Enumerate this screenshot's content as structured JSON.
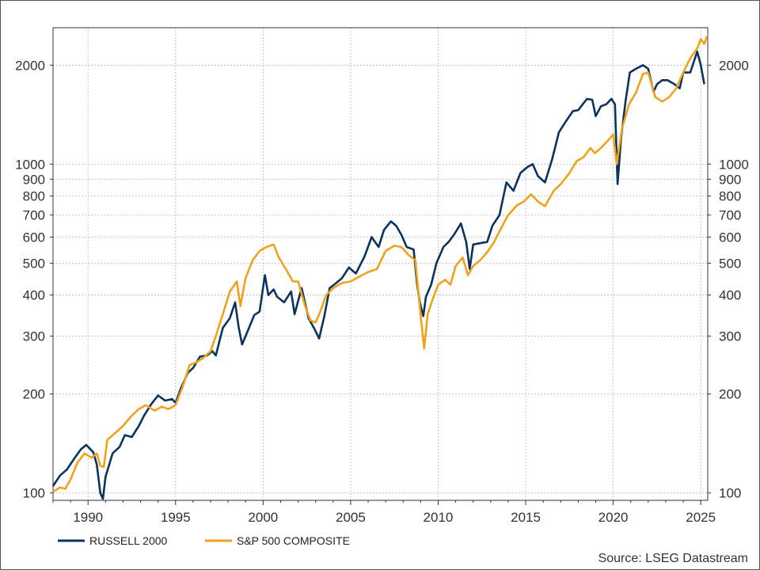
{
  "chart_data": {
    "type": "line",
    "yscale": "log",
    "ylim": [
      95,
      2600
    ],
    "xlim": [
      1988.0,
      2025.4
    ],
    "x_ticks": [
      "1990",
      "1995",
      "2000",
      "2005",
      "2010",
      "2015",
      "2020",
      "2025"
    ],
    "y_ticks": [
      "100",
      "200",
      "300",
      "400",
      "500",
      "600",
      "700",
      "800",
      "900",
      "1000",
      "2000"
    ],
    "grid": true,
    "legend_position": "bottom-left",
    "source": "Source: LSEG Datastream",
    "colors": {
      "russell": "#0b3360",
      "sp500": "#f0a21b"
    },
    "series": [
      {
        "name": "RUSSELL 2000",
        "color": "#0b3360",
        "points": [
          [
            1988.0,
            105
          ],
          [
            1988.4,
            113
          ],
          [
            1988.8,
            118
          ],
          [
            1989.2,
            127
          ],
          [
            1989.6,
            136
          ],
          [
            1989.9,
            140
          ],
          [
            1990.3,
            133
          ],
          [
            1990.5,
            122
          ],
          [
            1990.7,
            100
          ],
          [
            1990.85,
            96
          ],
          [
            1991.0,
            112
          ],
          [
            1991.4,
            132
          ],
          [
            1991.8,
            138
          ],
          [
            1992.1,
            150
          ],
          [
            1992.5,
            148
          ],
          [
            1992.9,
            160
          ],
          [
            1993.2,
            172
          ],
          [
            1993.6,
            186
          ],
          [
            1994.0,
            198
          ],
          [
            1994.4,
            191
          ],
          [
            1994.8,
            193
          ],
          [
            1995.0,
            188
          ],
          [
            1995.3,
            208
          ],
          [
            1995.7,
            232
          ],
          [
            1996.0,
            240
          ],
          [
            1996.4,
            260
          ],
          [
            1996.8,
            262
          ],
          [
            1997.1,
            270
          ],
          [
            1997.3,
            262
          ],
          [
            1997.7,
            318
          ],
          [
            1998.1,
            340
          ],
          [
            1998.4,
            380
          ],
          [
            1998.6,
            320
          ],
          [
            1998.8,
            283
          ],
          [
            1999.0,
            300
          ],
          [
            1999.5,
            348
          ],
          [
            1999.8,
            356
          ],
          [
            2000.1,
            460
          ],
          [
            2000.3,
            400
          ],
          [
            2000.6,
            416
          ],
          [
            2000.8,
            395
          ],
          [
            2001.2,
            380
          ],
          [
            2001.6,
            410
          ],
          [
            2001.8,
            350
          ],
          [
            2002.2,
            420
          ],
          [
            2002.6,
            340
          ],
          [
            2002.9,
            318
          ],
          [
            2003.2,
            295
          ],
          [
            2003.5,
            345
          ],
          [
            2003.8,
            420
          ],
          [
            2004.2,
            436
          ],
          [
            2004.5,
            450
          ],
          [
            2004.9,
            485
          ],
          [
            2005.3,
            465
          ],
          [
            2005.8,
            525
          ],
          [
            2006.2,
            600
          ],
          [
            2006.6,
            560
          ],
          [
            2006.9,
            630
          ],
          [
            2007.3,
            670
          ],
          [
            2007.6,
            650
          ],
          [
            2007.9,
            610
          ],
          [
            2008.2,
            560
          ],
          [
            2008.6,
            550
          ],
          [
            2008.8,
            430
          ],
          [
            2008.95,
            380
          ],
          [
            2009.15,
            345
          ],
          [
            2009.3,
            395
          ],
          [
            2009.6,
            430
          ],
          [
            2009.9,
            500
          ],
          [
            2010.3,
            560
          ],
          [
            2010.6,
            580
          ],
          [
            2010.9,
            610
          ],
          [
            2011.3,
            660
          ],
          [
            2011.6,
            580
          ],
          [
            2011.8,
            480
          ],
          [
            2012.0,
            570
          ],
          [
            2012.4,
            575
          ],
          [
            2012.8,
            580
          ],
          [
            2013.1,
            650
          ],
          [
            2013.5,
            700
          ],
          [
            2013.9,
            880
          ],
          [
            2014.3,
            830
          ],
          [
            2014.7,
            940
          ],
          [
            2015.1,
            980
          ],
          [
            2015.4,
            1000
          ],
          [
            2015.7,
            920
          ],
          [
            2016.1,
            880
          ],
          [
            2016.5,
            1030
          ],
          [
            2016.9,
            1250
          ],
          [
            2017.3,
            1350
          ],
          [
            2017.7,
            1450
          ],
          [
            2018.0,
            1460
          ],
          [
            2018.5,
            1580
          ],
          [
            2018.8,
            1570
          ],
          [
            2019.0,
            1400
          ],
          [
            2019.3,
            1500
          ],
          [
            2019.6,
            1520
          ],
          [
            2019.9,
            1580
          ],
          [
            2020.1,
            1520
          ],
          [
            2020.25,
            870
          ],
          [
            2020.45,
            1200
          ],
          [
            2020.7,
            1550
          ],
          [
            2020.95,
            1900
          ],
          [
            2021.3,
            1950
          ],
          [
            2021.7,
            2000
          ],
          [
            2022.0,
            1950
          ],
          [
            2022.3,
            1660
          ],
          [
            2022.5,
            1750
          ],
          [
            2022.8,
            1800
          ],
          [
            2023.1,
            1800
          ],
          [
            2023.5,
            1750
          ],
          [
            2023.8,
            1700
          ],
          [
            2024.0,
            1900
          ],
          [
            2024.4,
            1900
          ],
          [
            2024.8,
            2200
          ],
          [
            2025.0,
            2000
          ],
          [
            2025.2,
            1750
          ]
        ]
      },
      {
        "name": "S&P 500 COMPOSITE",
        "color": "#f0a21b",
        "points": [
          [
            1988.0,
            101
          ],
          [
            1988.4,
            104
          ],
          [
            1988.7,
            103
          ],
          [
            1989.0,
            110
          ],
          [
            1989.4,
            124
          ],
          [
            1989.8,
            132
          ],
          [
            1990.2,
            128
          ],
          [
            1990.5,
            132
          ],
          [
            1990.7,
            121
          ],
          [
            1990.9,
            120
          ],
          [
            1991.1,
            145
          ],
          [
            1991.6,
            153
          ],
          [
            1992.0,
            160
          ],
          [
            1992.5,
            172
          ],
          [
            1992.9,
            180
          ],
          [
            1993.3,
            185
          ],
          [
            1993.8,
            178
          ],
          [
            1994.2,
            183
          ],
          [
            1994.6,
            180
          ],
          [
            1995.0,
            185
          ],
          [
            1995.4,
            210
          ],
          [
            1995.8,
            245
          ],
          [
            1996.2,
            250
          ],
          [
            1996.6,
            258
          ],
          [
            1997.0,
            270
          ],
          [
            1997.3,
            300
          ],
          [
            1997.7,
            350
          ],
          [
            1998.1,
            410
          ],
          [
            1998.5,
            440
          ],
          [
            1998.7,
            370
          ],
          [
            1999.0,
            450
          ],
          [
            1999.4,
            510
          ],
          [
            1999.8,
            545
          ],
          [
            2000.2,
            560
          ],
          [
            2000.6,
            570
          ],
          [
            2000.9,
            520
          ],
          [
            2001.3,
            480
          ],
          [
            2001.7,
            440
          ],
          [
            2002.0,
            440
          ],
          [
            2002.4,
            370
          ],
          [
            2002.7,
            335
          ],
          [
            2003.0,
            330
          ],
          [
            2003.3,
            360
          ],
          [
            2003.6,
            400
          ],
          [
            2004.0,
            420
          ],
          [
            2004.5,
            435
          ],
          [
            2005.0,
            440
          ],
          [
            2005.5,
            455
          ],
          [
            2006.0,
            470
          ],
          [
            2006.5,
            480
          ],
          [
            2007.0,
            545
          ],
          [
            2007.5,
            565
          ],
          [
            2007.9,
            560
          ],
          [
            2008.3,
            530
          ],
          [
            2008.7,
            510
          ],
          [
            2008.85,
            420
          ],
          [
            2009.0,
            345
          ],
          [
            2009.2,
            275
          ],
          [
            2009.4,
            350
          ],
          [
            2009.7,
            390
          ],
          [
            2010.0,
            430
          ],
          [
            2010.4,
            445
          ],
          [
            2010.7,
            430
          ],
          [
            2011.0,
            490
          ],
          [
            2011.4,
            520
          ],
          [
            2011.7,
            460
          ],
          [
            2012.0,
            490
          ],
          [
            2012.4,
            510
          ],
          [
            2012.8,
            540
          ],
          [
            2013.2,
            580
          ],
          [
            2013.6,
            640
          ],
          [
            2014.0,
            700
          ],
          [
            2014.5,
            750
          ],
          [
            2014.9,
            770
          ],
          [
            2015.3,
            810
          ],
          [
            2015.7,
            770
          ],
          [
            2016.1,
            745
          ],
          [
            2016.6,
            830
          ],
          [
            2017.0,
            870
          ],
          [
            2017.5,
            940
          ],
          [
            2017.9,
            1020
          ],
          [
            2018.3,
            1050
          ],
          [
            2018.7,
            1120
          ],
          [
            2018.95,
            1080
          ],
          [
            2019.3,
            1120
          ],
          [
            2019.7,
            1180
          ],
          [
            2020.0,
            1230
          ],
          [
            2020.2,
            1000
          ],
          [
            2020.5,
            1280
          ],
          [
            2020.9,
            1520
          ],
          [
            2021.3,
            1650
          ],
          [
            2021.7,
            1880
          ],
          [
            2022.0,
            1900
          ],
          [
            2022.4,
            1600
          ],
          [
            2022.8,
            1550
          ],
          [
            2023.2,
            1600
          ],
          [
            2023.6,
            1700
          ],
          [
            2024.0,
            1900
          ],
          [
            2024.4,
            2100
          ],
          [
            2024.8,
            2250
          ],
          [
            2025.0,
            2400
          ],
          [
            2025.2,
            2320
          ],
          [
            2025.35,
            2450
          ]
        ]
      }
    ]
  }
}
